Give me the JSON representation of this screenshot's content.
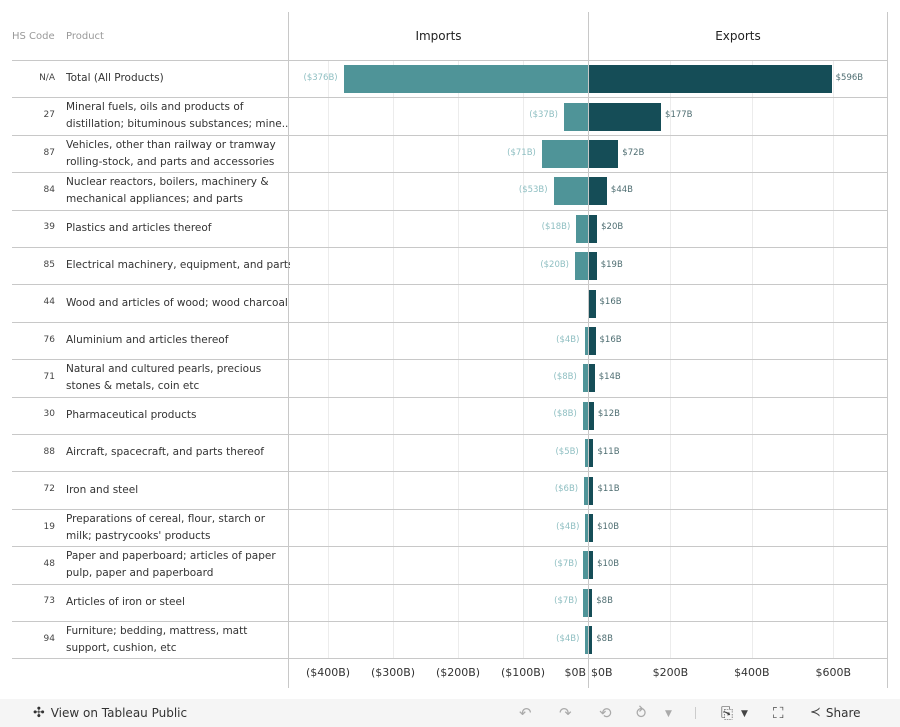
{
  "columns": {
    "hs_code": "HS Code",
    "product": "Product"
  },
  "footer": {
    "view_link": "View on Tableau Public",
    "share_label": "Share",
    "icons": [
      "undo-icon",
      "redo-icon",
      "revert-icon",
      "refresh-icon",
      "download-icon",
      "fullscreen-icon",
      "share-icon"
    ]
  },
  "colors": {
    "imports": "#4f9498",
    "exports": "#154d57"
  },
  "chart_data": {
    "type": "bar",
    "title": "",
    "panes": [
      "Imports",
      "Exports"
    ],
    "categories": [
      {
        "code": "N/A",
        "product": [
          "Total (All Products)"
        ]
      },
      {
        "code": "27",
        "product": [
          "Mineral fuels, oils and products of",
          "distillation; bituminous substances; mine.."
        ]
      },
      {
        "code": "87",
        "product": [
          "Vehicles, other than railway or tramway",
          "rolling-stock, and parts and accessories"
        ]
      },
      {
        "code": "84",
        "product": [
          "Nuclear reactors, boilers, machinery &",
          "mechanical appliances; and parts"
        ]
      },
      {
        "code": "39",
        "product": [
          "Plastics and articles thereof"
        ]
      },
      {
        "code": "85",
        "product": [
          "Electrical machinery, equipment, and parts"
        ]
      },
      {
        "code": "44",
        "product": [
          "Wood and articles of wood; wood charcoal"
        ]
      },
      {
        "code": "76",
        "product": [
          "Aluminium and articles thereof"
        ]
      },
      {
        "code": "71",
        "product": [
          "Natural and cultured pearls, precious",
          "stones & metals, coin etc"
        ]
      },
      {
        "code": "30",
        "product": [
          "Pharmaceutical products"
        ]
      },
      {
        "code": "88",
        "product": [
          "Aircraft, spacecraft, and parts thereof"
        ]
      },
      {
        "code": "72",
        "product": [
          "Iron and steel"
        ]
      },
      {
        "code": "19",
        "product": [
          "Preparations of cereal, flour, starch or",
          "milk; pastrycooks' products"
        ]
      },
      {
        "code": "48",
        "product": [
          "Paper and paperboard; articles of paper",
          "pulp, paper and paperboard"
        ]
      },
      {
        "code": "73",
        "product": [
          "Articles of iron or steel"
        ]
      },
      {
        "code": "94",
        "product": [
          "Furniture; bedding, mattress, matt",
          "support, cushion, etc"
        ]
      }
    ],
    "series": [
      {
        "name": "Imports",
        "unit": "$B",
        "values": [
          376,
          37,
          71,
          53,
          18,
          20,
          0,
          4,
          8,
          8,
          5,
          6,
          4,
          7,
          7,
          4
        ],
        "labels": [
          "($376B)",
          "($37B)",
          "($71B)",
          "($53B)",
          "($18B)",
          "($20B)",
          "",
          "($4B)",
          "($8B)",
          "($8B)",
          "($5B)",
          "($6B)",
          "($4B)",
          "($7B)",
          "($7B)",
          "($4B)"
        ]
      },
      {
        "name": "Exports",
        "unit": "$B",
        "values": [
          596,
          177,
          72,
          44,
          20,
          19,
          16,
          16,
          14,
          12,
          11,
          11,
          10,
          10,
          8,
          8
        ],
        "labels": [
          "$596B",
          "$177B",
          "$72B",
          "$44B",
          "$20B",
          "$19B",
          "$16B",
          "$16B",
          "$14B",
          "$12B",
          "$11B",
          "$11B",
          "$10B",
          "$10B",
          "$8B",
          "$8B"
        ]
      }
    ],
    "axes": {
      "imports": {
        "range": [
          -460,
          0
        ],
        "ticks": [
          -400,
          -300,
          -200,
          -100,
          0
        ],
        "tick_labels": [
          "($400B)",
          "($300B)",
          "($200B)",
          "($100B)",
          "$0B"
        ]
      },
      "exports": {
        "range": [
          0,
          732
        ],
        "ticks": [
          0,
          200,
          400,
          600
        ],
        "tick_labels": [
          "$0B",
          "$200B",
          "$400B",
          "$600B"
        ]
      }
    },
    "grid": true,
    "legend": "none"
  }
}
